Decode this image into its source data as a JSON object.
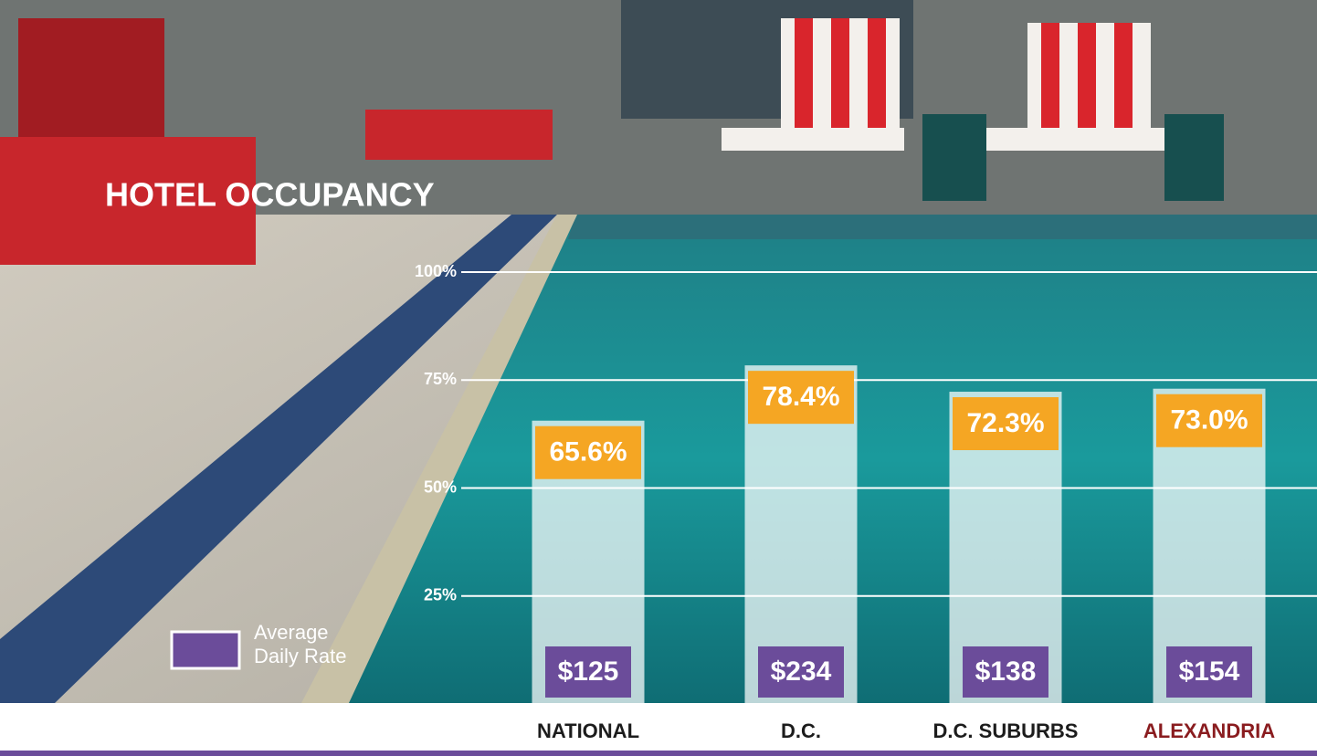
{
  "chart_data": {
    "type": "bar",
    "title": "HOTEL OCCUPANCY",
    "categories": [
      "NATIONAL",
      "D.C.",
      "D.C. SUBURBS",
      "ALEXANDRIA"
    ],
    "category_colors": [
      "#1c1c1c",
      "#1c1c1c",
      "#1c1c1c",
      "#8a1c1f"
    ],
    "values": [
      65.6,
      78.4,
      72.3,
      73.0
    ],
    "value_labels": [
      "65.6%",
      "78.4%",
      "72.3%",
      "73.0%"
    ],
    "color": "#f5a623",
    "adr": {
      "name": "Average Daily Rate",
      "color": "#6b4c9a",
      "values": [
        125,
        234,
        138,
        154
      ],
      "value_labels": [
        "$125",
        "$234",
        "$138",
        "$154"
      ]
    },
    "ylim": [
      0,
      100
    ],
    "yticks": [
      {
        "value": 25,
        "label": "25%"
      },
      {
        "value": 50,
        "label": "50%"
      },
      {
        "value": 75,
        "label": "75%"
      },
      {
        "value": 100,
        "label": "100%"
      }
    ],
    "grid": true
  }
}
